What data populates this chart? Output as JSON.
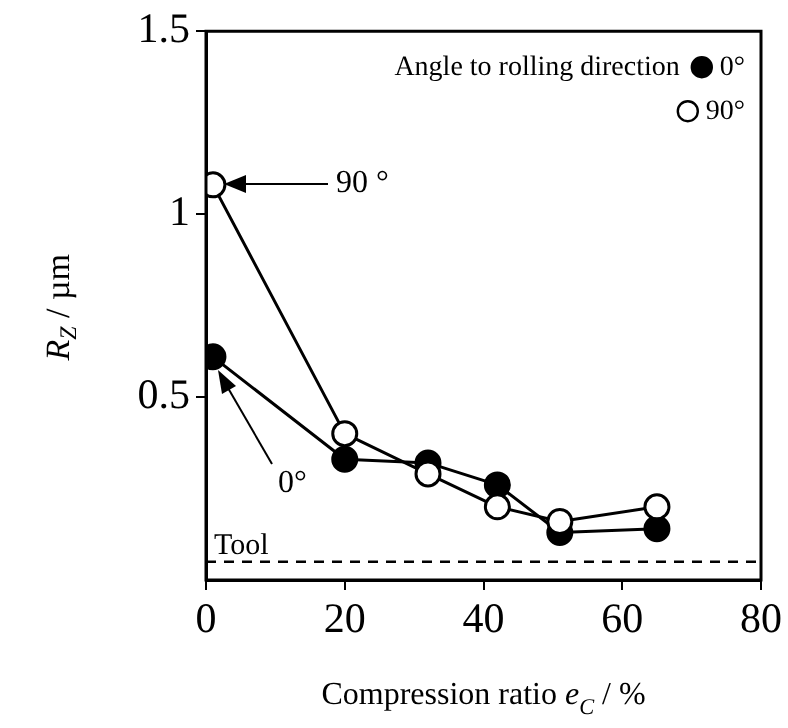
{
  "chart_data": {
    "type": "line",
    "xlabel": "Compression ratio e$_{C}$ / %",
    "ylabel": "R$_{Z}$ / µm",
    "legend_title": "Angle to rolling direction",
    "series": [
      {
        "name": "0°",
        "color": "#000000",
        "x": [
          1,
          20,
          32,
          42,
          51,
          65
        ],
        "values": [
          0.61,
          0.33,
          0.32,
          0.26,
          0.13,
          0.14
        ]
      },
      {
        "name": "90°",
        "color": "#000000",
        "x": [
          1,
          20,
          32,
          42,
          51,
          65
        ],
        "values": [
          1.08,
          0.4,
          0.29,
          0.2,
          0.16,
          0.2
        ]
      }
    ],
    "xlim": [
      0,
      80
    ],
    "xticks": [
      0,
      20,
      40,
      60,
      80
    ],
    "ylim": [
      0,
      1.5
    ],
    "yticks": [
      0.5,
      1,
      1.5
    ],
    "ref_lines": [
      {
        "axis": "y",
        "value": 0.05,
        "label": "Tool",
        "line_style": "dashed"
      }
    ],
    "annotations": [
      "90 °",
      "0°"
    ],
    "grid": false,
    "legend": "top right",
    "marker": "circle",
    "line_style": "solid"
  }
}
